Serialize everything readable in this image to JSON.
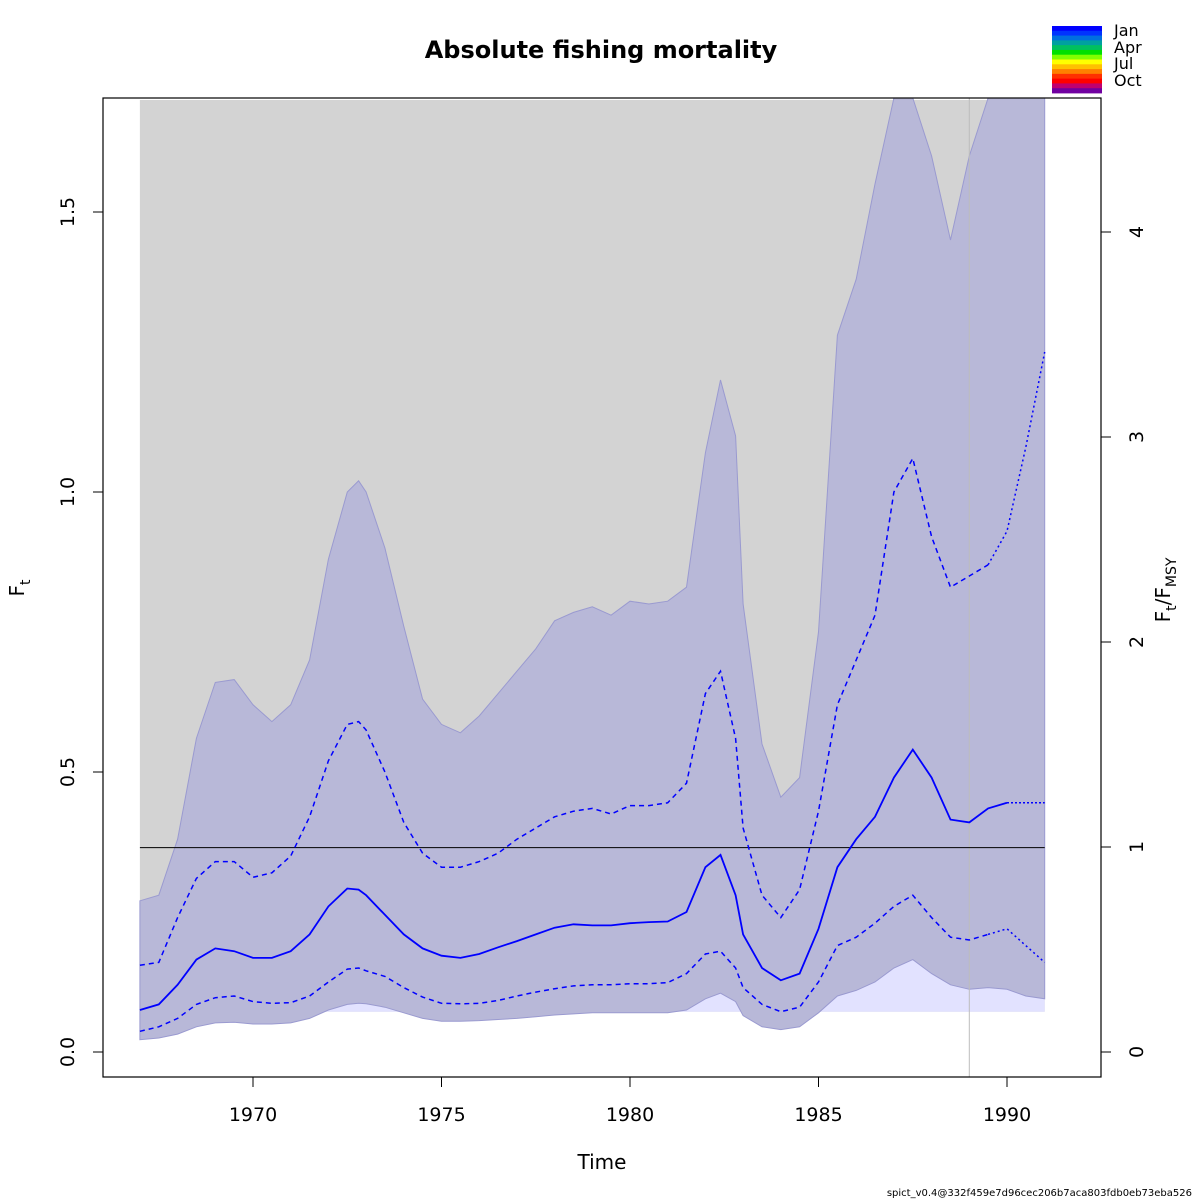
{
  "chart_data": {
    "type": "line",
    "title": "Absolute fishing mortality",
    "xlabel": "Time",
    "ylabel": "F",
    "ylabel_sub": "t",
    "ylabel_right": {
      "main1": "F",
      "sub1": "t",
      "sep": "/",
      "main2": "F",
      "sub2": "MSY"
    },
    "xlim": [
      1966,
      1992.5
    ],
    "ylim": [
      -0.07,
      1.7
    ],
    "ylim_right": [
      -0.19,
      4.62
    ],
    "x_ticks": [
      1970,
      1975,
      1980,
      1985,
      1990
    ],
    "x_tick_labels": [
      "1970",
      "1975",
      "1980",
      "1985",
      "1990"
    ],
    "y_ticks": [
      0.0,
      0.5,
      1.0,
      1.5
    ],
    "y_tick_labels": [
      "0.0",
      "0.5",
      "1.0",
      "1.5"
    ],
    "y_right_ticks": [
      0,
      1,
      2,
      3,
      4
    ],
    "y_right_tick_labels": [
      "0",
      "1",
      "2",
      "3",
      "4"
    ],
    "fmsy": 0.365,
    "fmsy_ci_band": {
      "x_range": [
        1967,
        1991
      ],
      "lower": 0.072,
      "upper": 1.7
    },
    "data_end_x": 1989,
    "forecast_start_x": 1990,
    "x": [
      1967,
      1967.5,
      1968,
      1968.5,
      1969,
      1969.5,
      1970,
      1970.5,
      1971,
      1971.5,
      1972,
      1972.5,
      1972.8,
      1973,
      1973.5,
      1974,
      1974.5,
      1975,
      1975.5,
      1976,
      1976.5,
      1977,
      1977.5,
      1978,
      1978.5,
      1979,
      1979.5,
      1980,
      1980.5,
      1981,
      1981.5,
      1982,
      1982.4,
      1982.8,
      1983,
      1983.5,
      1984,
      1984.5,
      1985,
      1985.5,
      1986,
      1986.5,
      1987,
      1987.5,
      1988,
      1988.5,
      1989,
      1989.5,
      1990,
      1990.5,
      1991
    ],
    "series": [
      {
        "role": "estimate",
        "color": "#0000ff",
        "values": [
          0.075,
          0.085,
          0.12,
          0.165,
          0.185,
          0.18,
          0.168,
          0.168,
          0.18,
          0.21,
          0.26,
          0.292,
          0.29,
          0.28,
          0.245,
          0.21,
          0.185,
          0.172,
          0.168,
          0.175,
          0.187,
          0.198,
          0.21,
          0.222,
          0.228,
          0.226,
          0.226,
          0.23,
          0.232,
          0.233,
          0.25,
          0.33,
          0.352,
          0.28,
          0.21,
          0.15,
          0.128,
          0.14,
          0.22,
          0.33,
          0.38,
          0.42,
          0.49,
          0.54,
          0.49,
          0.415,
          0.41,
          0.435,
          0.445,
          0.445,
          0.445
        ]
      },
      {
        "role": "upper-ci",
        "color": "#0000ff",
        "values": [
          0.155,
          0.16,
          0.24,
          0.31,
          0.34,
          0.34,
          0.312,
          0.32,
          0.35,
          0.42,
          0.52,
          0.585,
          0.59,
          0.575,
          0.5,
          0.41,
          0.355,
          0.33,
          0.33,
          0.34,
          0.355,
          0.38,
          0.4,
          0.42,
          0.43,
          0.435,
          0.425,
          0.44,
          0.44,
          0.445,
          0.48,
          0.64,
          0.68,
          0.56,
          0.4,
          0.28,
          0.24,
          0.29,
          0.43,
          0.62,
          0.7,
          0.78,
          1.0,
          1.06,
          0.92,
          0.83,
          0.85,
          0.87,
          0.93,
          1.08,
          1.25
        ]
      },
      {
        "role": "lower-ci",
        "color": "#0000ff",
        "values": [
          0.037,
          0.045,
          0.06,
          0.085,
          0.097,
          0.1,
          0.09,
          0.087,
          0.088,
          0.1,
          0.125,
          0.148,
          0.15,
          0.145,
          0.135,
          0.115,
          0.098,
          0.087,
          0.086,
          0.087,
          0.092,
          0.1,
          0.107,
          0.113,
          0.118,
          0.12,
          0.12,
          0.122,
          0.122,
          0.124,
          0.14,
          0.175,
          0.18,
          0.15,
          0.115,
          0.085,
          0.072,
          0.08,
          0.125,
          0.19,
          0.205,
          0.23,
          0.26,
          0.28,
          0.24,
          0.205,
          0.2,
          0.21,
          0.22,
          0.19,
          0.16
        ]
      }
    ],
    "band": {
      "role": "state-ci",
      "color": "#b8b8d8",
      "upper": [
        0.27,
        0.28,
        0.38,
        0.56,
        0.66,
        0.665,
        0.62,
        0.59,
        0.62,
        0.7,
        0.88,
        1.0,
        1.02,
        1.0,
        0.9,
        0.76,
        0.63,
        0.585,
        0.57,
        0.6,
        0.64,
        0.68,
        0.72,
        0.77,
        0.785,
        0.795,
        0.78,
        0.805,
        0.8,
        0.805,
        0.83,
        1.07,
        1.2,
        1.1,
        0.8,
        0.55,
        0.455,
        0.49,
        0.75,
        1.28,
        1.38,
        1.55,
        1.72,
        1.72,
        1.6,
        1.45,
        1.6,
        1.72,
        1.72,
        1.72,
        1.72
      ],
      "lower": [
        0.022,
        0.025,
        0.032,
        0.045,
        0.052,
        0.053,
        0.05,
        0.05,
        0.052,
        0.06,
        0.075,
        0.085,
        0.087,
        0.086,
        0.08,
        0.07,
        0.06,
        0.055,
        0.055,
        0.056,
        0.058,
        0.06,
        0.063,
        0.066,
        0.068,
        0.07,
        0.07,
        0.07,
        0.07,
        0.07,
        0.075,
        0.095,
        0.105,
        0.09,
        0.065,
        0.045,
        0.04,
        0.045,
        0.07,
        0.1,
        0.11,
        0.125,
        0.15,
        0.165,
        0.14,
        0.12,
        0.112,
        0.115,
        0.112,
        0.1,
        0.095
      ]
    },
    "legend": {
      "placement": "top-right",
      "labels": [
        "Jan",
        "Apr",
        "Jul",
        "Oct"
      ],
      "colors": [
        "#0000ff",
        "#0033ff",
        "#006fe0",
        "#00a0a0",
        "#00c060",
        "#00e000",
        "#80ff00",
        "#ffff00",
        "#ffc000",
        "#ff8000",
        "#ff3000",
        "#ff0000",
        "#c00070",
        "#7000a0"
      ]
    }
  },
  "footer": {
    "stamp": "spict_v0.4@332f459e7d96cec206b7aca803fdb0eb73eba526"
  }
}
